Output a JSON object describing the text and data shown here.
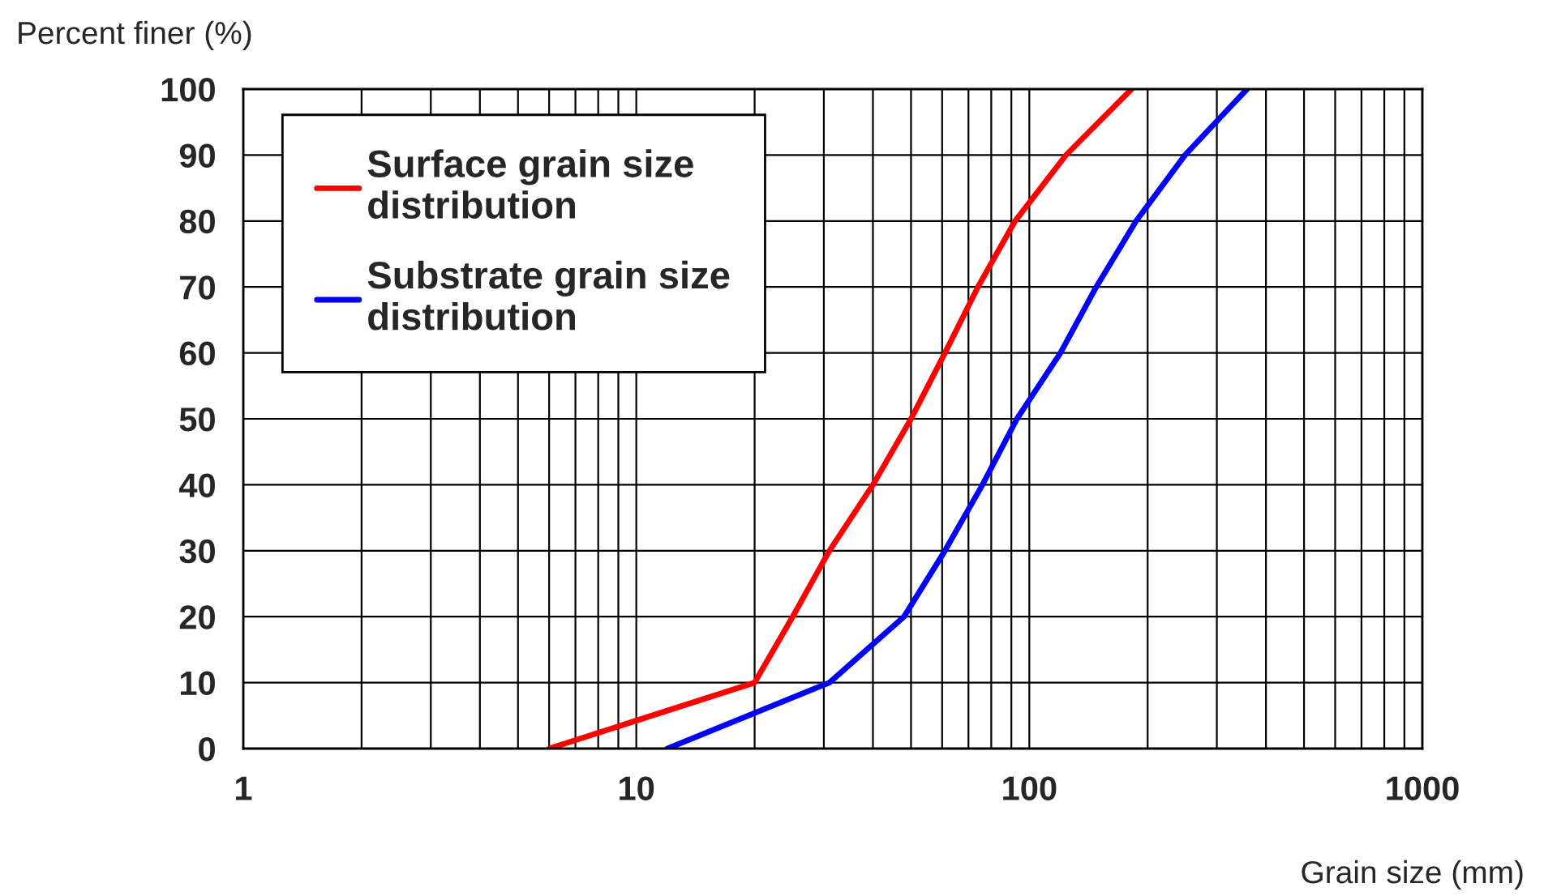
{
  "chart_data": {
    "type": "line",
    "ylabel": "Percent finer (%)",
    "xlabel": "Grain size (mm)",
    "log": "x",
    "xlim": [
      1,
      1000
    ],
    "xticks": [
      1,
      10,
      100,
      1000
    ],
    "ylim": [
      0,
      100
    ],
    "yticks": [
      0,
      10,
      20,
      30,
      40,
      50,
      60,
      70,
      80,
      90,
      100
    ],
    "grid": true,
    "legend": "top left",
    "marker": "none",
    "line_style": "solid",
    "series": [
      {
        "name": "Surface grain size distribution",
        "color": "#ff0000",
        "x": [
          6,
          20,
          25,
          31,
          40,
          50,
          61,
          74,
          92,
          124,
          182
        ],
        "values": [
          0,
          10,
          20,
          30,
          40,
          50,
          60,
          70,
          80,
          90,
          100
        ]
      },
      {
        "name": "Substrate grain size distribution",
        "color": "#0000ff",
        "x": [
          12,
          31,
          48,
          61,
          76,
          93,
          120,
          148,
          187,
          249,
          358
        ],
        "values": [
          0,
          10,
          20,
          30,
          40,
          50,
          60,
          70,
          80,
          90,
          100
        ]
      }
    ]
  }
}
